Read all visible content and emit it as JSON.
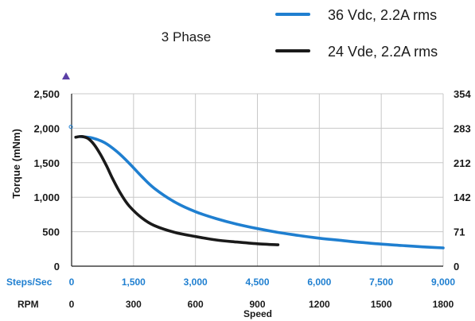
{
  "chart_data": {
    "type": "line",
    "title": "3 Phase",
    "ylabel": "Torque (mNm)",
    "xlabel": "Speed",
    "x_axis_primary_label": "Steps/Sec",
    "x_axis_secondary_label": "RPM",
    "xlim": [
      0,
      9000
    ],
    "ylim": [
      0,
      2500
    ],
    "y_ticks": [
      0,
      500,
      1000,
      1500,
      2000,
      2500
    ],
    "y_tick_labels": [
      "0",
      "500",
      "1,000",
      "1,500",
      "2,000",
      "2,500"
    ],
    "y2_tick_labels": [
      "0",
      "71",
      "142",
      "212",
      "283",
      "354"
    ],
    "x_ticks": [
      0,
      1500,
      3000,
      4500,
      6000,
      7500,
      9000
    ],
    "x_tick_labels": [
      "0",
      "1,500",
      "3,000",
      "4,500",
      "6,000",
      "7,500",
      "9,000"
    ],
    "x2_tick_labels": [
      "0",
      "300",
      "600",
      "900",
      "1200",
      "1500",
      "1800"
    ],
    "grid": true,
    "legend_position": "top-right",
    "series": [
      {
        "name": "36 Vdc, 2.2A rms",
        "color": "#1f7fd0",
        "x": [
          200,
          500,
          800,
          1100,
          1400,
          1700,
          2000,
          2500,
          3000,
          3500,
          4000,
          4500,
          5000,
          5500,
          6000,
          6500,
          7000,
          7500,
          8000,
          8500,
          9000
        ],
        "y": [
          1880,
          1860,
          1790,
          1660,
          1490,
          1300,
          1130,
          930,
          790,
          690,
          610,
          545,
          490,
          445,
          405,
          375,
          345,
          320,
          300,
          280,
          265
        ]
      },
      {
        "name": "24 Vde, 2.2A rms",
        "color": "#1a1a1a",
        "x": [
          100,
          250,
          400,
          550,
          700,
          850,
          1000,
          1200,
          1400,
          1700,
          2000,
          2500,
          3000,
          3500,
          4000,
          4500,
          5000
        ],
        "y": [
          1870,
          1880,
          1850,
          1760,
          1620,
          1450,
          1260,
          1040,
          870,
          700,
          590,
          490,
          430,
          380,
          350,
          325,
          310
        ]
      }
    ]
  },
  "colors": {
    "steps_axis": "#1f7fd0",
    "marker_triangle": "#5b3fa6",
    "grid": "#c8c8c8"
  }
}
